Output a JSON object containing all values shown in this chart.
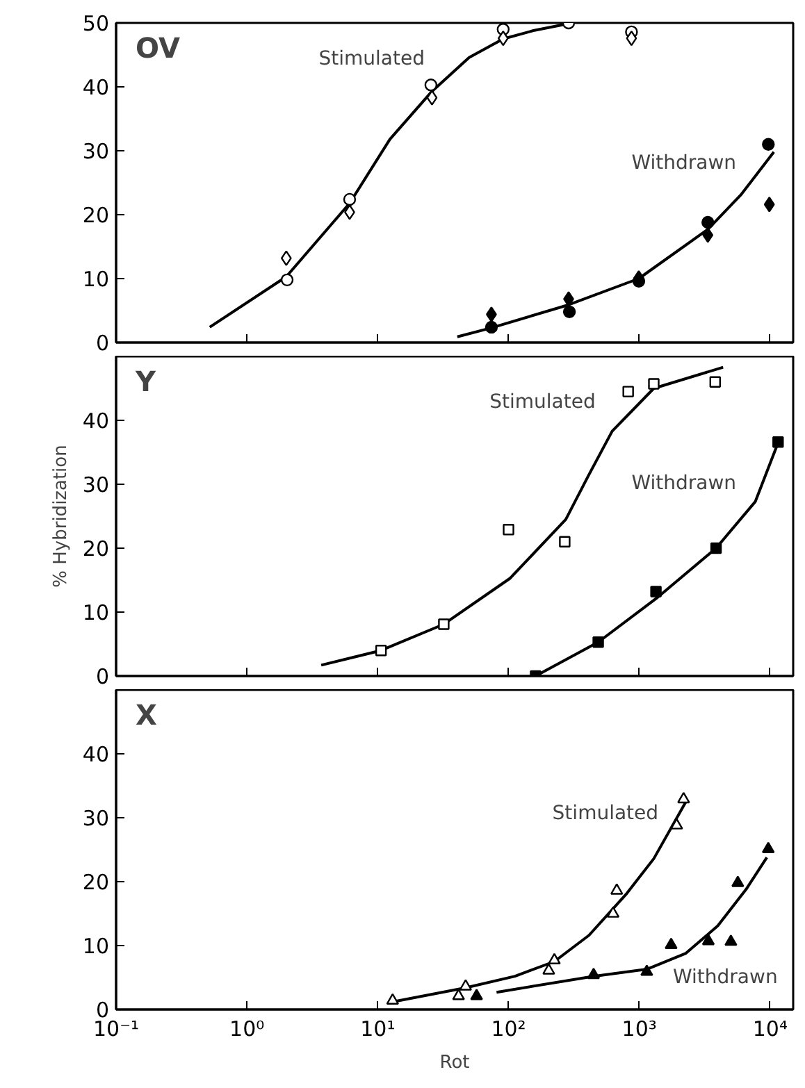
{
  "chart_data": [
    {
      "type": "scatter",
      "title": "OV",
      "log": "x",
      "xlim": [
        0.1,
        15000
      ],
      "xticks": [
        {
          "value": 0.1,
          "label": null
        },
        {
          "value": 1,
          "label": null
        },
        {
          "value": 10,
          "label": null
        },
        {
          "value": 100,
          "label": null
        },
        {
          "value": 1000,
          "label": null
        },
        {
          "value": 10000,
          "label": null
        }
      ],
      "ylim": [
        0,
        50
      ],
      "yticks": [
        0,
        10,
        20,
        30,
        40,
        50
      ],
      "tick_labels": "y",
      "grid": false,
      "series": [
        {
          "type": "line",
          "color": "#000000",
          "marker": "none",
          "x": [
            0.52,
            2.0,
            6.1,
            12.4,
            26,
            50,
            91,
            155,
            288
          ],
          "values": [
            2.4,
            10.3,
            21.8,
            31.8,
            39.3,
            44.6,
            47.5,
            48.8,
            49.9
          ]
        },
        {
          "type": "line",
          "color": "#000000",
          "marker": "none",
          "x": [
            40.6,
            74,
            288,
            990,
            3340,
            6030,
            10670
          ],
          "values": [
            0.9,
            2.3,
            5.9,
            10,
            17.7,
            23.2,
            29.8
          ]
        },
        {
          "color": "#ffffff",
          "marker": "circle",
          "x": [
            2.03,
            6.1,
            25.5,
            91,
            288,
            871
          ],
          "values": [
            9.8,
            22.4,
            40.3,
            49,
            50,
            48.6
          ]
        },
        {
          "color": "#ffffff",
          "marker": "diamond",
          "x": [
            2.0,
            6.1,
            26,
            91,
            871
          ],
          "values": [
            13.2,
            20.4,
            38.3,
            47.6,
            47.6
          ]
        },
        {
          "color": "#000000",
          "marker": "diamond",
          "x": [
            74,
            288,
            990,
            3340,
            9860
          ],
          "values": [
            4.4,
            6.8,
            10.1,
            16.8,
            21.6
          ]
        },
        {
          "color": "#000000",
          "marker": "circle",
          "x": [
            74,
            292,
            991,
            3340,
            9690
          ],
          "values": [
            2.4,
            4.8,
            9.6,
            18.8,
            31
          ]
        }
      ],
      "annotations": [
        "Stimulated",
        "Withdrawn"
      ]
    },
    {
      "type": "scatter",
      "title": "Y",
      "log": "x",
      "xlim": [
        0.1,
        15000
      ],
      "xticks": [
        {
          "value": 0.1,
          "label": null
        },
        {
          "value": 1,
          "label": null
        },
        {
          "value": 10,
          "label": null
        },
        {
          "value": 100,
          "label": null
        },
        {
          "value": 1000,
          "label": null
        },
        {
          "value": 10000,
          "label": null
        }
      ],
      "ylim": [
        0,
        50
      ],
      "yticks": [
        0,
        10,
        20,
        30,
        40
      ],
      "tick_labels": "y",
      "grid": false,
      "ylabel": "% Hybridization",
      "series": [
        {
          "type": "line",
          "color": "#000000",
          "marker": "none",
          "x": [
            3.7,
            10.6,
            32,
            103,
            274,
            412,
            620,
            1290,
            4370
          ],
          "values": [
            1.7,
            4.0,
            8.1,
            15.3,
            24.5,
            31.5,
            38.3,
            45,
            48.3
          ]
        },
        {
          "type": "line",
          "color": "#000000",
          "marker": "none",
          "x": [
            161,
            485,
            1340,
            3860,
            7710,
            11500
          ],
          "values": [
            0,
            5.3,
            12.1,
            20,
            27.3,
            36.5
          ]
        },
        {
          "color": "#ffffff",
          "marker": "square",
          "x": [
            10.6,
            32,
            100,
            269,
            822,
            1290,
            3800
          ],
          "values": [
            4.0,
            8.1,
            22.9,
            21,
            44.5,
            45.7,
            46
          ]
        },
        {
          "color": "#000000",
          "marker": "square",
          "x": [
            161,
            485,
            1340,
            3860,
            11500
          ],
          "values": [
            0,
            5.3,
            13.2,
            20,
            36.6
          ]
        }
      ],
      "annotations": [
        "Stimulated",
        "Withdrawn"
      ]
    },
    {
      "type": "scatter",
      "title": "X",
      "log": "x",
      "xlim": [
        0.1,
        15000
      ],
      "xticks": [
        {
          "value": 0.1,
          "label": "10⁻¹"
        },
        {
          "value": 1,
          "label": "10⁰"
        },
        {
          "value": 10,
          "label": "10¹"
        },
        {
          "value": 100,
          "label": "10²"
        },
        {
          "value": 1000,
          "label": "10³"
        },
        {
          "value": 10000,
          "label": "10⁴"
        }
      ],
      "ylim": [
        0,
        50
      ],
      "yticks": [
        0,
        10,
        20,
        30,
        40
      ],
      "grid": false,
      "xlabel": "Rot",
      "series": [
        {
          "type": "line",
          "color": "#000000",
          "marker": "none",
          "x": [
            13,
            47,
            112,
            224,
            412,
            790,
            1290,
            2270
          ],
          "values": [
            1.2,
            3.4,
            5.2,
            7.5,
            11.6,
            18,
            23.6,
            32.5
          ]
        },
        {
          "type": "line",
          "color": "#000000",
          "marker": "none",
          "x": [
            81,
            447,
            1140,
            2270,
            3980,
            6550,
            9440
          ],
          "values": [
            2.7,
            5.2,
            6.3,
            8.8,
            13.1,
            18.8,
            23.8
          ]
        },
        {
          "color": "#ffffff",
          "marker": "triangle",
          "x": [
            13,
            41.5,
            47,
            203,
            224,
            630,
            672,
            1930,
            2180
          ],
          "values": [
            1.4,
            2.1,
            3.6,
            6.1,
            7.7,
            15,
            18.6,
            28.8,
            32.9
          ]
        },
        {
          "color": "#000000",
          "marker": "triangle",
          "x": [
            57,
            447,
            1140,
            1750,
            3370,
            5010,
            5660,
            9680
          ],
          "values": [
            2.1,
            5.4,
            5.9,
            10.1,
            10.7,
            10.6,
            19.8,
            25.1
          ]
        }
      ],
      "annotations": [
        "Stimulated",
        "Withdrawn"
      ]
    }
  ]
}
